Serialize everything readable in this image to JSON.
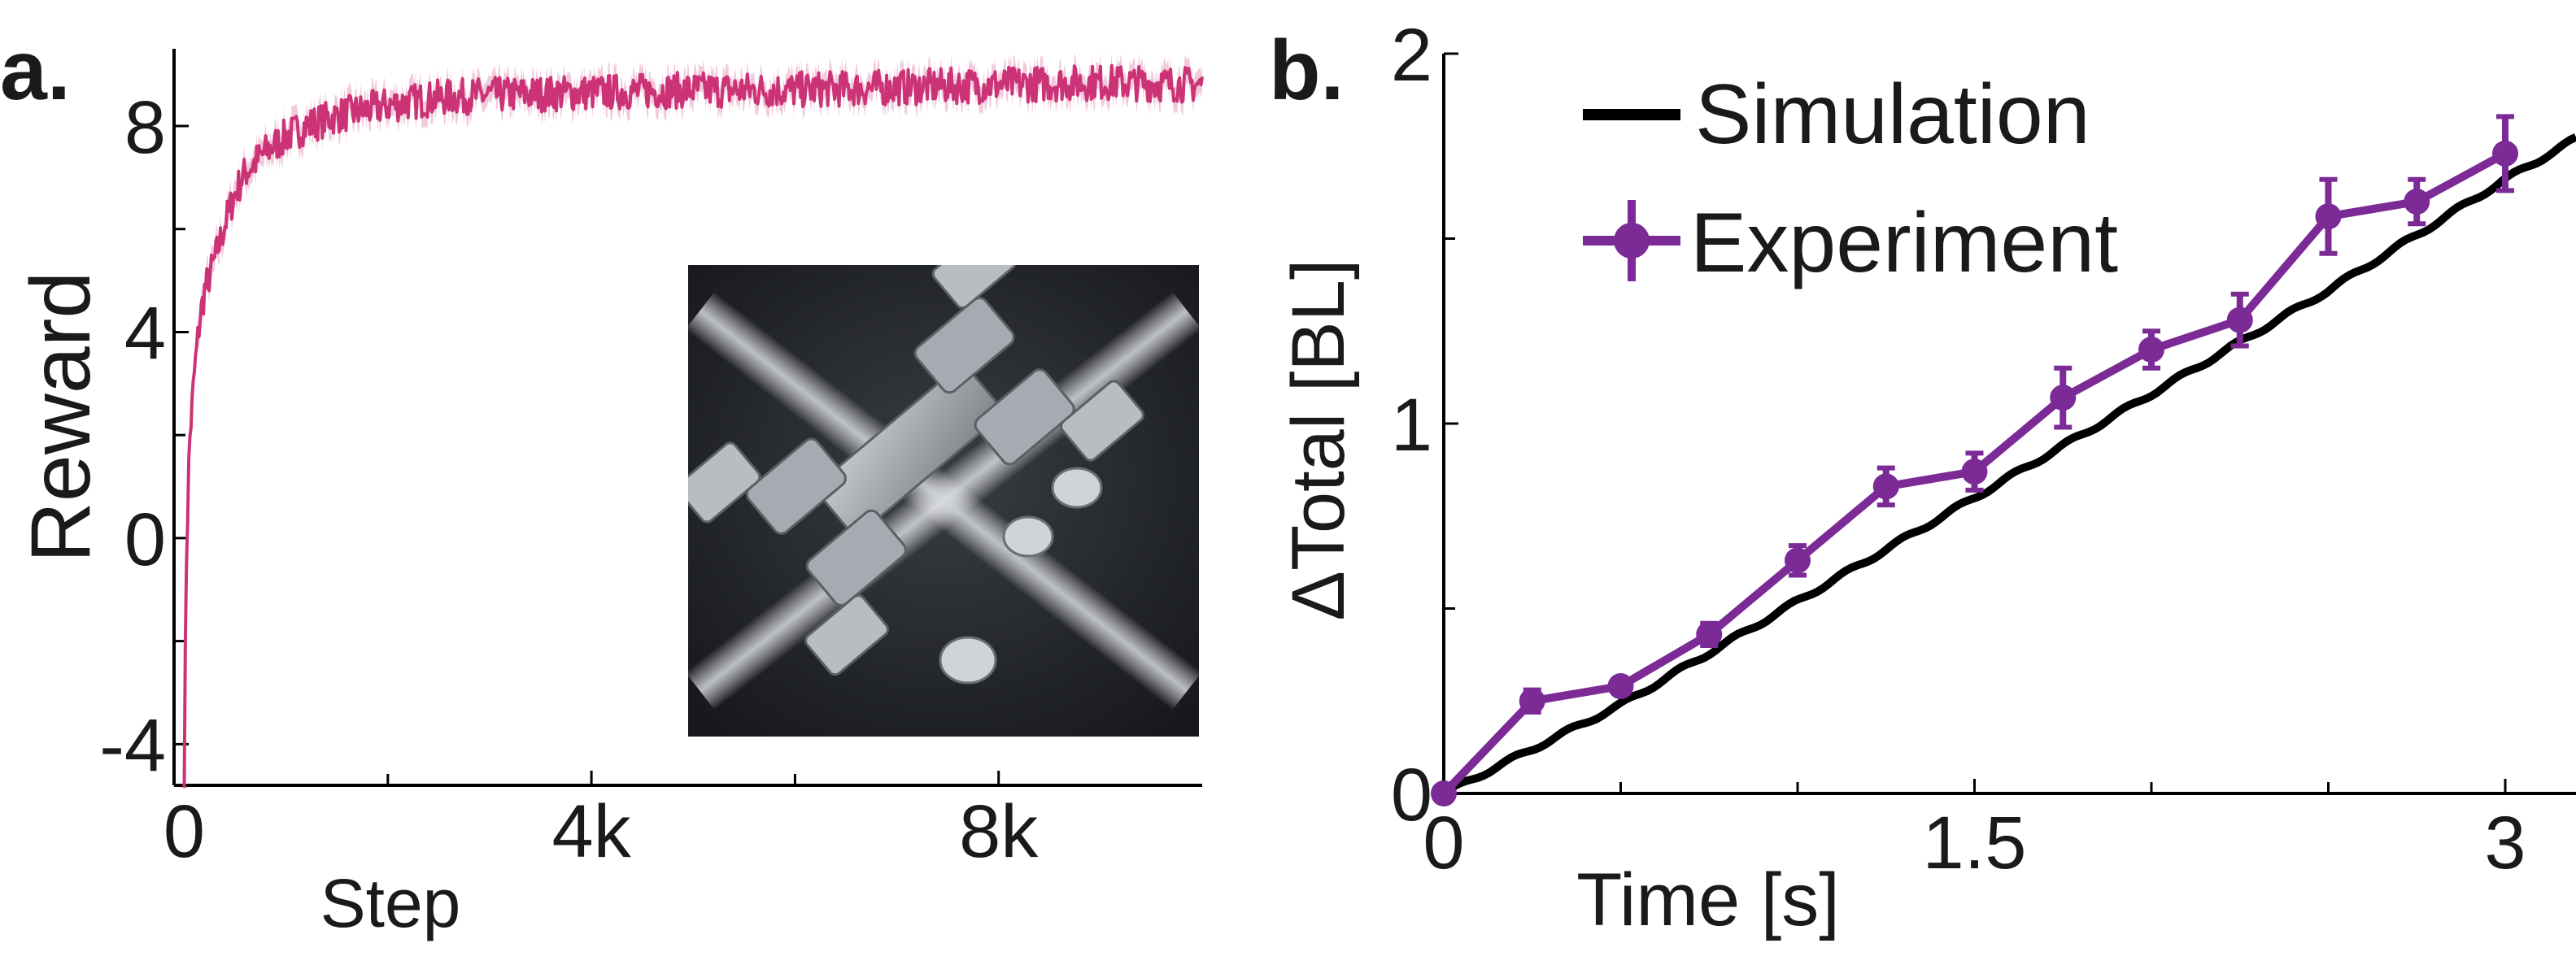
{
  "panel_labels": {
    "a": "a.",
    "b": "b."
  },
  "chart_data": [
    {
      "id": "a",
      "type": "line",
      "xlabel": "Step",
      "ylabel": "Reward",
      "xlim": [
        -100,
        10000
      ],
      "ylim": [
        -4.8,
        9.5
      ],
      "xticks": [
        0,
        4000,
        8000
      ],
      "xtick_labels": [
        "0",
        "4k",
        "8k"
      ],
      "xminor_ticks": [
        2000,
        6000
      ],
      "yticks": [
        -4,
        0,
        4,
        8
      ],
      "ytick_labels": [
        "-4",
        "0",
        "4",
        "8"
      ],
      "yminor_ticks": [
        -2,
        2,
        6
      ],
      "grid": false,
      "legend": false,
      "series": [
        {
          "color": "#cc3377",
          "band_color": "#e9a6c4",
          "x": [
            0,
            20,
            50,
            100,
            150,
            200,
            300,
            400,
            500,
            600,
            800,
            1000,
            1200,
            1500,
            2000,
            2500,
            3000,
            4000,
            5000,
            6000,
            7000,
            8000,
            9000,
            10000
          ],
          "y": [
            -4.5,
            -0.5,
            1.8,
            3.2,
            4.2,
            4.8,
            5.4,
            6.1,
            6.7,
            7.1,
            7.5,
            7.8,
            8.0,
            8.2,
            8.4,
            8.55,
            8.6,
            8.65,
            8.7,
            8.7,
            8.75,
            8.8,
            8.85,
            8.8
          ]
        }
      ],
      "inset_image": "simulated quadruped robot render"
    },
    {
      "id": "b",
      "type": "line",
      "xlabel": "Time [s]",
      "ylabel": "ΔTotal [BL]",
      "xlim": [
        0,
        3.2
      ],
      "ylim": [
        0,
        2
      ],
      "xticks": [
        0,
        1.5,
        3
      ],
      "xtick_labels": [
        "0",
        "1.5",
        "3"
      ],
      "xminor_ticks": [
        0.5,
        1.0,
        2.0,
        2.5
      ],
      "yticks": [
        0,
        1,
        2
      ],
      "ytick_labels": [
        "0",
        "1",
        "2"
      ],
      "yminor_ticks": [
        0.5,
        1.5
      ],
      "grid": false,
      "legend": "top-left",
      "series": [
        {
          "name": "Simulation",
          "color": "#000000",
          "x": [
            0,
            0.25,
            0.5,
            0.75,
            1.0,
            1.25,
            1.5,
            1.75,
            2.0,
            2.25,
            2.5,
            2.75,
            3.0,
            3.2
          ],
          "y": [
            0,
            0.12,
            0.24,
            0.38,
            0.52,
            0.66,
            0.8,
            0.94,
            1.08,
            1.22,
            1.36,
            1.51,
            1.66,
            1.77
          ]
        },
        {
          "name": "Experiment",
          "color": "#7b2a96",
          "x": [
            0,
            0.25,
            0.5,
            0.75,
            1.0,
            1.25,
            1.5,
            1.75,
            2.0,
            2.25,
            2.5,
            2.75,
            3.0
          ],
          "y": [
            0,
            0.25,
            0.29,
            0.43,
            0.63,
            0.83,
            0.87,
            1.07,
            1.2,
            1.28,
            1.56,
            1.6,
            1.73
          ],
          "error": [
            0.01,
            0.03,
            0.02,
            0.03,
            0.04,
            0.05,
            0.05,
            0.08,
            0.05,
            0.07,
            0.1,
            0.06,
            0.1
          ]
        }
      ]
    }
  ]
}
